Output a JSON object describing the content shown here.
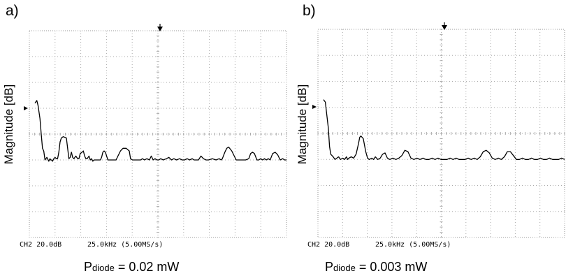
{
  "chart_data": [
    {
      "type": "line",
      "panel_label": "a)",
      "ylabel": "Magnitude [dB]",
      "scale_text": "CH2 20.0dB",
      "timebase_text": "25.0kHz (5.00MS/s)",
      "caption_main": "P",
      "caption_sub": "diode",
      "caption_rest": " = 0.02 mW",
      "grid": true,
      "x": [
        0.0,
        0.3,
        0.5,
        0.8,
        1.0,
        1.2,
        1.4,
        1.6,
        1.9,
        2.2,
        2.4,
        2.5,
        2.65,
        2.8,
        3.0,
        3.2,
        3.4,
        3.6,
        3.8,
        4.0,
        4.2,
        4.5,
        5.0,
        5.2,
        5.4,
        5.6,
        5.8,
        6.0,
        6.2,
        6.5,
        6.8,
        7.0,
        7.2,
        7.5,
        7.7,
        7.9,
        8.1,
        8.3,
        8.6,
        8.8,
        9.0,
        9.2,
        9.4,
        9.6,
        9.9,
        10.0,
        10.2,
        10.4,
        10.6,
        10.8,
        11.0,
        11.2,
        11.6,
        12.0,
        12.5,
        12.9,
        13.2,
        13.6,
        14.0,
        14.5,
        15.0,
        15.2,
        15.5,
        16.0,
        16.8,
        17.1,
        17.4,
        17.8,
        18.2,
        18.5,
        18.8,
        19.1,
        19.4,
        19.7,
        20.0,
        20.4,
        20.9,
        21.3,
        21.7,
        22.1,
        22.5,
        23.0,
        23.4,
        23.8,
        24.2,
        24.6,
        25.0,
        25.3,
        25.6,
        26.0,
        26.4,
        26.8,
        27.2,
        27.6,
        28.2,
        28.8,
        29.3,
        29.6,
        29.8,
        30.2,
        30.5,
        30.8,
        31.3,
        32.0,
        32.5,
        33.0,
        33.5,
        34.0,
        34.3,
        34.6,
        34.9,
        35.3,
        35.6,
        35.9,
        36.2,
        36.5,
        36.8,
        37.1,
        37.4,
        37.8,
        38.2,
        38.6,
        39.0,
        39.4,
        39.7,
        40.0
      ],
      "y": [
        5.2,
        5.3,
        5.1,
        4.6,
        4.0,
        3.45,
        3.35,
        3.0,
        3.1,
        2.95,
        3.05,
        3.0,
        3.0,
        2.95,
        3.05,
        3.1,
        3.05,
        3.05,
        3.3,
        3.7,
        3.85,
        3.9,
        3.85,
        3.45,
        3.05,
        3.1,
        3.3,
        3.1,
        3.05,
        3.15,
        3.05,
        3.05,
        3.25,
        3.3,
        3.35,
        3.15,
        3.05,
        3.05,
        3.15,
        3.0,
        3.05,
        2.95,
        3.0,
        3.0,
        3.0,
        3.0,
        3.0,
        3.0,
        3.1,
        3.3,
        3.35,
        3.3,
        3.0,
        3.0,
        3.0,
        3.0,
        3.15,
        3.35,
        3.45,
        3.45,
        3.35,
        3.05,
        3.0,
        3.0,
        3.0,
        3.05,
        3.0,
        3.05,
        3.0,
        3.15,
        3.0,
        3.05,
        3.0,
        3.0,
        3.05,
        3.0,
        3.05,
        3.1,
        3.0,
        3.05,
        3.0,
        3.05,
        3.0,
        3.0,
        3.05,
        3.0,
        3.05,
        3.0,
        3.0,
        3.0,
        3.15,
        3.05,
        3.0,
        3.0,
        3.05,
        3.0,
        3.05,
        3.0,
        3.05,
        3.3,
        3.45,
        3.5,
        3.35,
        3.0,
        3.0,
        3.0,
        3.0,
        3.05,
        3.25,
        3.3,
        3.25,
        3.0,
        3.0,
        3.05,
        3.0,
        3.05,
        3.0,
        3.05,
        3.0,
        3.25,
        3.3,
        3.2,
        3.0,
        3.05,
        3.0,
        3.0
      ],
      "xlim": [
        0,
        40
      ],
      "ylim": [
        0,
        8
      ]
    },
    {
      "type": "line",
      "panel_label": "b)",
      "ylabel": "Magnitude [dB]",
      "scale_text": "CH2 20.0dB",
      "timebase_text": "25.0kHz (5.00MS/s)",
      "caption_main": "P",
      "caption_sub": "diode",
      "caption_rest": " = 0.003 mW",
      "grid": true,
      "x": [
        0.0,
        0.3,
        0.5,
        0.8,
        1.0,
        1.2,
        1.4,
        1.6,
        1.9,
        2.2,
        2.5,
        2.8,
        3.2,
        3.5,
        3.8,
        4.0,
        4.2,
        4.6,
        5.0,
        5.4,
        5.8,
        6.0,
        6.2,
        6.6,
        7.0,
        7.3,
        7.6,
        8.0,
        8.3,
        8.6,
        9.0,
        9.4,
        9.8,
        10.2,
        10.6,
        11.0,
        11.5,
        12.0,
        12.5,
        13.0,
        13.5,
        14.0,
        14.5,
        15.0,
        15.5,
        16.0,
        16.5,
        17.0,
        17.5,
        18.0,
        18.5,
        19.0,
        19.5,
        20.0,
        20.5,
        21.0,
        21.5,
        22.0,
        22.5,
        23.0,
        23.5,
        24.0,
        24.5,
        25.0,
        25.5,
        26.0,
        26.5,
        27.0,
        27.5,
        28.0,
        28.5,
        29.0,
        29.5,
        30.0,
        30.5,
        31.0,
        31.5,
        32.0,
        32.5,
        33.0,
        33.5,
        34.0,
        34.5,
        35.0,
        35.5,
        36.0,
        36.5,
        37.0,
        37.5,
        38.0,
        38.5,
        39.0,
        39.5,
        40.0
      ],
      "y": [
        5.3,
        5.2,
        4.8,
        4.2,
        3.5,
        3.2,
        3.15,
        3.1,
        3.0,
        3.05,
        3.1,
        3.0,
        3.05,
        3.0,
        3.1,
        3.0,
        3.05,
        3.1,
        3.05,
        3.2,
        3.6,
        3.85,
        3.9,
        3.8,
        3.3,
        3.05,
        3.0,
        3.05,
        3.0,
        3.1,
        3.0,
        3.05,
        3.2,
        3.25,
        3.05,
        3.0,
        3.05,
        3.0,
        3.05,
        3.15,
        3.35,
        3.3,
        3.05,
        3.0,
        3.05,
        3.0,
        3.05,
        3.0,
        3.0,
        3.05,
        3.0,
        3.05,
        3.0,
        3.0,
        3.0,
        3.05,
        3.0,
        3.05,
        3.0,
        3.0,
        3.0,
        3.05,
        3.0,
        3.05,
        3.0,
        3.1,
        3.3,
        3.35,
        3.25,
        3.05,
        3.0,
        3.05,
        3.0,
        3.1,
        3.3,
        3.3,
        3.15,
        3.0,
        3.0,
        3.05,
        3.0,
        3.0,
        3.05,
        3.0,
        3.0,
        3.05,
        3.0,
        3.0,
        3.05,
        3.0,
        3.0,
        3.0,
        3.05,
        3.0
      ],
      "xlim": [
        0,
        40
      ],
      "ylim": [
        0,
        8
      ]
    }
  ],
  "colors": {
    "trace": "#000000",
    "grid": "#aaaaaa",
    "frame": "#999999"
  }
}
